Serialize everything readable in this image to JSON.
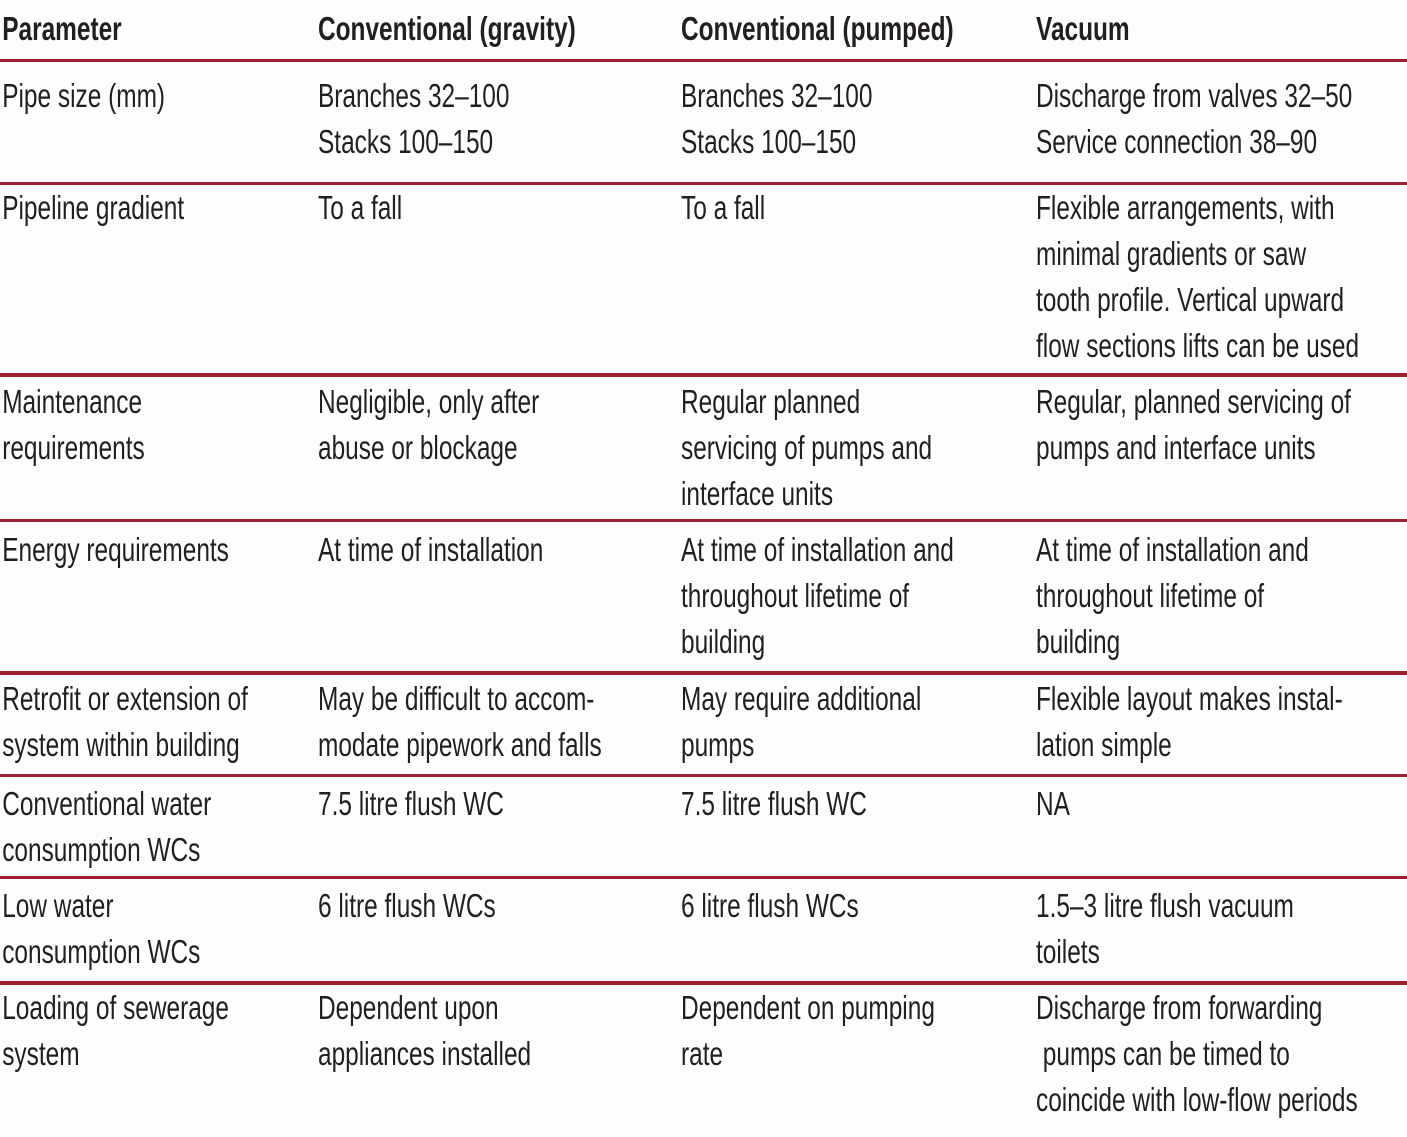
{
  "colors": {
    "rule": "#9c1f33",
    "text": "#231f20",
    "background": "#fdfdfd"
  },
  "table": {
    "columns": [
      "Parameter",
      "Conventional (gravity)",
      "Conventional (pumped)",
      "Vacuum"
    ],
    "rows": [
      {
        "parameter": "Pipe size (mm)",
        "gravity": "Branches 32–100\nStacks 100–150",
        "pumped": "Branches 32–100\nStacks 100–150",
        "vacuum": "Discharge from valves 32–50\nService connection 38–90"
      },
      {
        "parameter": "Pipeline gradient",
        "gravity": "To a fall",
        "pumped": "To a fall",
        "vacuum": "Flexible arrangements, with\nminimal gradients or saw\ntooth profile. Vertical upward\nflow sections lifts can be used"
      },
      {
        "parameter": "Maintenance\nrequirements",
        "gravity": "Negligible, only after\nabuse or blockage",
        "pumped": "Regular planned\nservicing of pumps and\ninterface units",
        "vacuum": "Regular, planned servicing of\npumps and interface units"
      },
      {
        "parameter": "Energy requirements",
        "gravity": "At time of installation",
        "pumped": "At time of installation and\nthroughout lifetime of\nbuilding",
        "vacuum": "At time of installation and\nthroughout lifetime of\nbuilding"
      },
      {
        "parameter": "Retrofit or extension of\nsystem within building",
        "gravity": "May be difficult to accom-\nmodate pipework and falls",
        "pumped": "May require additional\npumps",
        "vacuum": "Flexible layout makes instal-\nlation simple"
      },
      {
        "parameter": "Conventional water\nconsumption WCs",
        "gravity": "7.5 litre flush WC",
        "pumped": "7.5 litre flush WC",
        "vacuum": "NA"
      },
      {
        "parameter": "Low water\nconsumption WCs",
        "gravity": "6 litre flush WCs",
        "pumped": "6 litre flush WCs",
        "vacuum": "1.5–3 litre flush vacuum\ntoilets"
      },
      {
        "parameter": "Loading of sewerage\nsystem",
        "gravity": "Dependent upon\nappliances installed",
        "pumped": "Dependent on pumping\nrate",
        "vacuum": "Discharge from forwarding\n pumps can be timed to\ncoincide with low-flow periods"
      }
    ]
  }
}
